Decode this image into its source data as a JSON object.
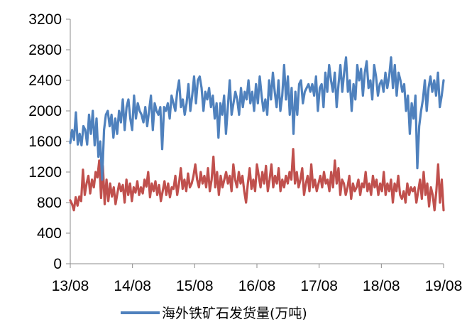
{
  "chart_data": {
    "type": "line",
    "title": "",
    "xlabel": "",
    "ylabel": "",
    "ylim": [
      0,
      3200
    ],
    "yticks": [
      0,
      400,
      800,
      1200,
      1600,
      2000,
      2400,
      2800,
      3200
    ],
    "x_tick_labels": [
      "13/08",
      "14/08",
      "15/08",
      "16/08",
      "17/08",
      "18/08",
      "19/08"
    ],
    "grid": false,
    "legend_position": "bottom",
    "series": [
      {
        "name": "海外铁矿石发货量(万吨)",
        "color": "#4f81bd",
        "values": [
          1580,
          1750,
          1620,
          1980,
          1560,
          1700,
          1550,
          1800,
          1750,
          1560,
          1950,
          1700,
          2000,
          1550,
          1900,
          1400,
          1600,
          1100,
          1750,
          1950,
          2000,
          1800,
          1950,
          1650,
          1900,
          1700,
          2000,
          1850,
          2150,
          1750,
          2050,
          2150,
          1900,
          1750,
          2200,
          1900,
          2100,
          2000,
          1950,
          1850,
          2050,
          1800,
          2000,
          2200,
          1750,
          2100,
          2000,
          1950,
          2050,
          1500,
          2050,
          2000,
          2100,
          1900,
          2200,
          2100,
          2000,
          2250,
          2400,
          2050,
          2150,
          1950,
          2100,
          2350,
          2000,
          2200,
          2450,
          2100,
          2400,
          2450,
          2300,
          2000,
          2250,
          2150,
          2300,
          2050,
          2200,
          1900,
          2100,
          1650,
          2100,
          1950,
          2200,
          1700,
          2050,
          2400,
          1950,
          2100,
          2250,
          2150,
          1950,
          2300,
          2050,
          2250,
          2150,
          2400,
          2100,
          2250,
          2000,
          2350,
          2100,
          2450,
          2200,
          2000,
          2150,
          1950,
          2400,
          2150,
          2500,
          2250,
          2050,
          2400,
          2000,
          2200,
          2600,
          2150,
          2450,
          1950,
          2300,
          1700,
          2250,
          1950,
          2350,
          2400,
          2100,
          2250,
          2300,
          2350,
          2250,
          2350,
          2200,
          2450,
          2000,
          2300,
          2350,
          2050,
          2500,
          2250,
          2600,
          2400,
          2250,
          2500,
          2050,
          2350,
          2600,
          2250,
          2500,
          2700,
          2250,
          2400,
          2000,
          2350,
          2150,
          2600,
          2400,
          2550,
          2200,
          2500,
          2650,
          2300,
          2400,
          2150,
          2600,
          2450,
          2200,
          2350,
          2400,
          2250,
          2500,
          2300,
          2450,
          2700,
          2300,
          2600,
          2200,
          2500,
          2400,
          2250,
          2350,
          2000,
          2200,
          1700,
          2100,
          1900,
          2200,
          1250,
          1800,
          2000,
          2150,
          2400,
          2000,
          2300,
          2450,
          2250,
          2400,
          2200,
          2500,
          2050,
          2200,
          2400
        ]
      },
      {
        "name": "",
        "color": "#c0504d",
        "values": [
          830,
          780,
          700,
          870,
          760,
          880,
          820,
          1230,
          900,
          1050,
          1150,
          920,
          1100,
          1000,
          1200,
          1130,
          1350,
          860,
          1280,
          780,
          1100,
          820,
          1050,
          880,
          1000,
          780,
          920,
          1050,
          950,
          1030,
          800,
          1100,
          900,
          1050,
          820,
          1000,
          930,
          1080,
          900,
          1000,
          920,
          1100,
          1010,
          1200,
          870,
          1050,
          950,
          1080,
          900,
          1030,
          820,
          950,
          1080,
          900,
          1050,
          870,
          1000,
          980,
          1150,
          900,
          1050,
          1250,
          980,
          1100,
          950,
          1180,
          1000,
          1050,
          1150,
          1300,
          1100,
          1000,
          1200,
          1050,
          1150,
          1000,
          1250,
          950,
          1100,
          1400,
          1000,
          1200,
          900,
          1150,
          1000,
          1100,
          1200,
          1050,
          1150,
          950,
          1300,
          1100,
          1000,
          1200,
          1050,
          1150,
          950,
          800,
          1050,
          1250,
          980,
          1100,
          950,
          1300,
          1150,
          1000,
          1200,
          1050,
          1280,
          950,
          1100,
          1300,
          1000,
          1150,
          1050,
          1250,
          950,
          1100,
          1000,
          1150,
          1050,
          1200,
          1100,
          1500,
          1050,
          1200,
          1000,
          1100,
          1250,
          900,
          1050,
          1150,
          950,
          1300,
          1000,
          1100,
          950,
          1050,
          1150,
          1000,
          1200,
          1050,
          1100,
          950,
          1200,
          1000,
          1350,
          1050,
          1250,
          900,
          1100,
          1050,
          900,
          1000,
          1150,
          850,
          1050,
          950,
          1000,
          1100,
          900,
          1050,
          1000,
          1200,
          950,
          1050,
          900,
          1150,
          1000,
          1100,
          900,
          1050,
          950,
          1200,
          900,
          1050,
          950,
          1100,
          800,
          1050,
          950,
          1150,
          900,
          850,
          950,
          800,
          1050,
          900,
          1000,
          950,
          1000,
          800,
          950,
          1100,
          850,
          1200,
          900,
          1050,
          750,
          1000,
          900,
          700,
          950,
          1300,
          800,
          1100,
          700
        ]
      }
    ]
  }
}
